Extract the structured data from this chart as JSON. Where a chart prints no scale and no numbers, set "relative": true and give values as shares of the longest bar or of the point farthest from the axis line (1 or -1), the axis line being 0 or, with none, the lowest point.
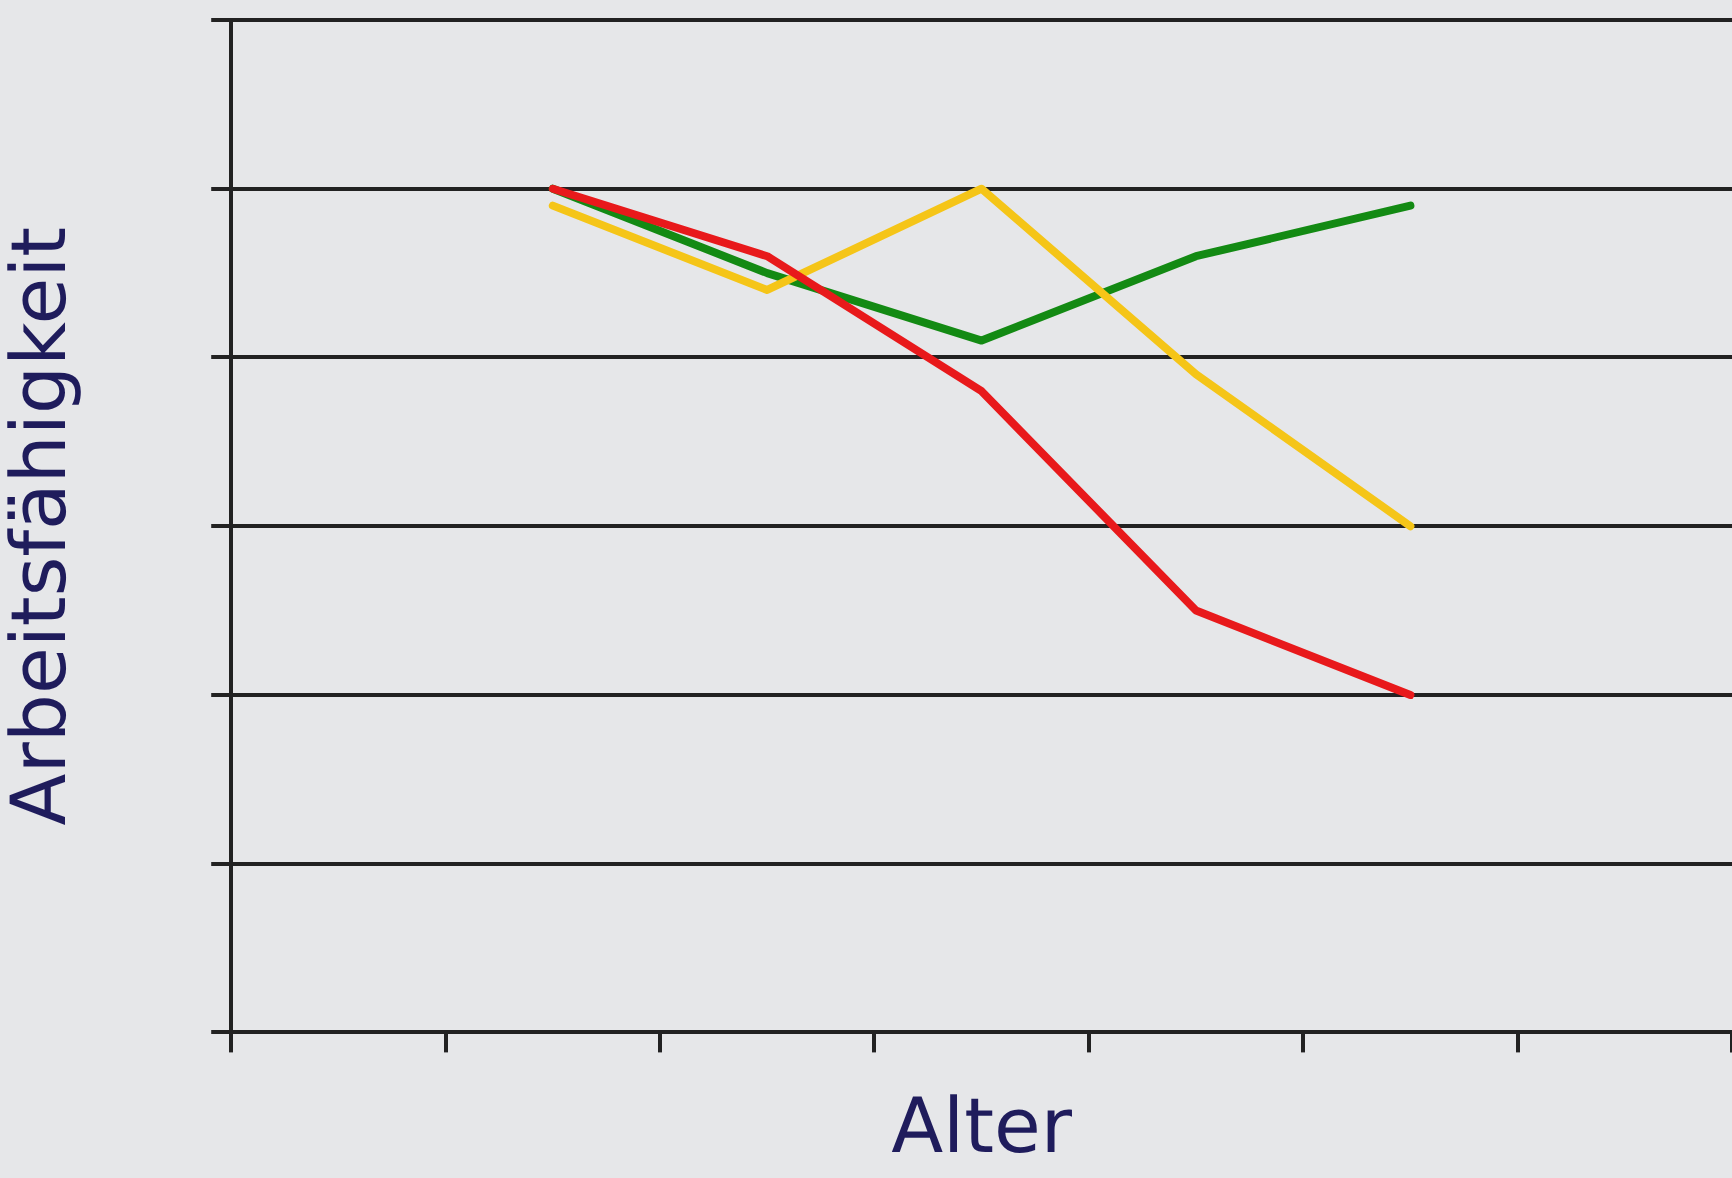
{
  "chart_data": {
    "type": "line",
    "xlabel": "Alter",
    "ylabel": "Arbeitsfähigkeit",
    "relative": true,
    "grid": "y",
    "legend": false,
    "marker": "none",
    "categories": [
      null,
      null,
      null,
      null,
      null,
      null,
      null
    ],
    "series": [
      {
        "color": "#e8191b",
        "values": [
          null,
          1,
          0.92,
          0.76,
          0.5,
          0.4,
          null
        ]
      },
      {
        "color": "#f5c518",
        "values": [
          null,
          0.98,
          0.88,
          1,
          0.78,
          0.6,
          null
        ]
      },
      {
        "color": "#138a13",
        "values": [
          null,
          1,
          0.9,
          0.82,
          0.92,
          0.98,
          null
        ]
      }
    ]
  }
}
